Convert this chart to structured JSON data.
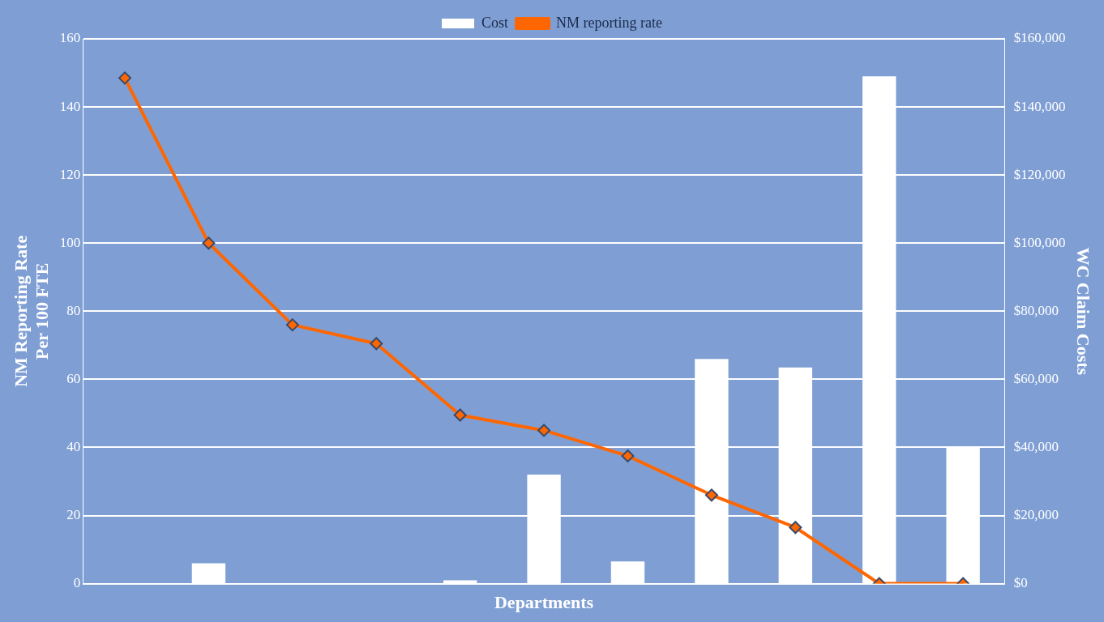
{
  "chart_data": {
    "type": "bar",
    "xlabel": "Departments",
    "ylabel": "NM Reporting Rate\nPer 100 FTE",
    "y2label": "WC Claim Costs",
    "categories": [
      null,
      null,
      null,
      null,
      null,
      null,
      null,
      null,
      null,
      null,
      null
    ],
    "series": [
      {
        "name": "Cost",
        "axis": "y2",
        "color": "#ffffff",
        "values": [
          0,
          6000,
          0,
          0,
          1000,
          32000,
          6500,
          66000,
          63500,
          149000,
          40000
        ]
      },
      {
        "name": "NM reporting rate",
        "type": "line",
        "axis": "y",
        "color": "#ff6600",
        "marker": "diamond",
        "values": [
          148.5,
          100,
          76,
          70.5,
          49.5,
          45,
          37.5,
          26,
          16.5,
          0,
          0
        ]
      }
    ],
    "ylim": [
      0,
      160
    ],
    "yticks": [
      0,
      20,
      40,
      60,
      80,
      100,
      120,
      140,
      160
    ],
    "y2lim": [
      0,
      160000
    ],
    "y2ticks": [
      {
        "value": 0,
        "label": "$0"
      },
      {
        "value": 20000,
        "label": "$20,000"
      },
      {
        "value": 40000,
        "label": "$40,000"
      },
      {
        "value": 60000,
        "label": "$60,000"
      },
      {
        "value": 80000,
        "label": "$80,000"
      },
      {
        "value": 100000,
        "label": "$100,000"
      },
      {
        "value": 120000,
        "label": "$120,000"
      },
      {
        "value": 140000,
        "label": "$140,000"
      },
      {
        "value": 160000,
        "label": "$160,000"
      }
    ],
    "grid": "y",
    "legend": "top"
  }
}
